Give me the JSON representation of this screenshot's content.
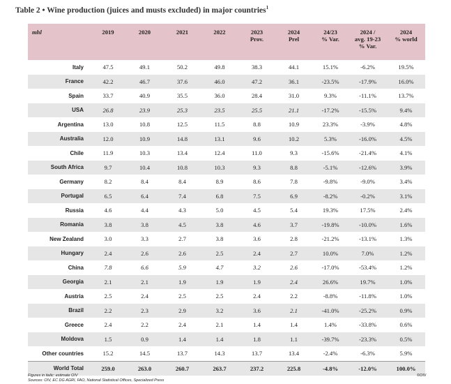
{
  "title": "Table 2 • Wine production (juices and musts excluded) in major countries",
  "title_note": "1",
  "table": {
    "header": [
      "mhl",
      "2019",
      "2020",
      "2021",
      "2022",
      "2023\nProv.",
      "2024\nPrel",
      "24/23\n% Var.",
      "2024 /\navg. 19-23\n% Var.",
      "2024\n% world"
    ],
    "rows": [
      {
        "label": "Italy",
        "values": [
          "47.5",
          "49.1",
          "50.2",
          "49.8",
          "38.3",
          "44.1",
          "15.1%",
          "-6.2%",
          "19.5%"
        ]
      },
      {
        "label": "France",
        "values": [
          "42.2",
          "46.7",
          "37.6",
          "46.0",
          "47.2",
          "36.1",
          "-23.5%",
          "-17.9%",
          "16.0%"
        ]
      },
      {
        "label": "Spain",
        "values": [
          "33.7",
          "40.9",
          "35.5",
          "36.0",
          "28.4",
          "31.0",
          "9.3%",
          "-11.1%",
          "13.7%"
        ]
      },
      {
        "label": "USA",
        "values": [
          "26.8",
          "23.9",
          "25.3",
          "23.5",
          "25.5",
          "21.1",
          "-17.2%",
          "-15.5%",
          "9.4%"
        ]
      },
      {
        "label": "Argentina",
        "values": [
          "13.0",
          "10.8",
          "12.5",
          "11.5",
          "8.8",
          "10.9",
          "23.3%",
          "-3.9%",
          "4.8%"
        ]
      },
      {
        "label": "Australia",
        "values": [
          "12.0",
          "10.9",
          "14.8",
          "13.1",
          "9.6",
          "10.2",
          "5.3%",
          "-16.0%",
          "4.5%"
        ]
      },
      {
        "label": "Chile",
        "values": [
          "11.9",
          "10.3",
          "13.4",
          "12.4",
          "11.0",
          "9.3",
          "-15.6%",
          "-21.4%",
          "4.1%"
        ]
      },
      {
        "label": "South Africa",
        "values": [
          "9.7",
          "10.4",
          "10.8",
          "10.3",
          "9.3",
          "8.8",
          "-5.1%",
          "-12.6%",
          "3.9%"
        ]
      },
      {
        "label": "Germany",
        "values": [
          "8.2",
          "8.4",
          "8.4",
          "8.9",
          "8.6",
          "7.8",
          "-9.8%",
          "-9.0%",
          "3.4%"
        ]
      },
      {
        "label": "Portugal",
        "values": [
          "6.5",
          "6.4",
          "7.4",
          "6.8",
          "7.5",
          "6.9",
          "-8.2%",
          "-0.2%",
          "3.1%"
        ]
      },
      {
        "label": "Russia",
        "values": [
          "4.6",
          "4.4",
          "4.3",
          "5.0",
          "4.5",
          "5.4",
          "19.3%",
          "17.5%",
          "2.4%"
        ]
      },
      {
        "label": "Romania",
        "values": [
          "3.8",
          "3.8",
          "4.5",
          "3.8",
          "4.6",
          "3.7",
          "-19.8%",
          "-10.0%",
          "1.6%"
        ]
      },
      {
        "label": "New Zealand",
        "values": [
          "3.0",
          "3.3",
          "2.7",
          "3.8",
          "3.6",
          "2.8",
          "-21.2%",
          "-13.1%",
          "1.3%"
        ]
      },
      {
        "label": "Hungary",
        "values": [
          "2.4",
          "2.6",
          "2.6",
          "2.5",
          "2.4",
          "2.7",
          "10.0%",
          "7.0%",
          "1.2%"
        ]
      },
      {
        "label": "China",
        "values": [
          "7.8",
          "6.6",
          "5.9",
          "4.7",
          "3.2",
          "2.6",
          "-17.0%",
          "-53.4%",
          "1.2%"
        ]
      },
      {
        "label": "Georgia",
        "values": [
          "2.1",
          "2.1",
          "1.9",
          "1.9",
          "1.9",
          "2.4",
          "26.6%",
          "19.7%",
          "1.0%"
        ]
      },
      {
        "label": "Austria",
        "values": [
          "2.5",
          "2.4",
          "2.5",
          "2.5",
          "2.4",
          "2.2",
          "-8.8%",
          "-11.8%",
          "1.0%"
        ]
      },
      {
        "label": "Brazil",
        "values": [
          "2.2",
          "2.3",
          "2.9",
          "3.2",
          "3.6",
          "2.1",
          "-41.0%",
          "-25.2%",
          "0.9%"
        ]
      },
      {
        "label": "Greece",
        "values": [
          "2.4",
          "2.2",
          "2.4",
          "2.1",
          "1.4",
          "1.4",
          "1.4%",
          "-33.8%",
          "0.6%"
        ]
      },
      {
        "label": "Moldova",
        "values": [
          "1.5",
          "0.9",
          "1.4",
          "1.4",
          "1.8",
          "1.1",
          "-39.7%",
          "-23.3%",
          "0.5%"
        ]
      },
      {
        "label": "Other countries",
        "values": [
          "15.2",
          "14.5",
          "13.7",
          "14.3",
          "13.7",
          "13.4",
          "-2.4%",
          "-6.3%",
          "5.9%"
        ]
      },
      {
        "label": "World Total",
        "values": [
          "259.0",
          "263.0",
          "260.7",
          "263.7",
          "237.2",
          "225.8",
          "-4.8%",
          "-12.0%",
          "100.0%"
        ]
      }
    ]
  },
  "footnotes": [
    "Figures in italic: estimate OIV",
    "Sources: OIV, EC DG AGRI, FAO, National Statistical Offices, Specialized Press"
  ],
  "copyright": "©OIV"
}
